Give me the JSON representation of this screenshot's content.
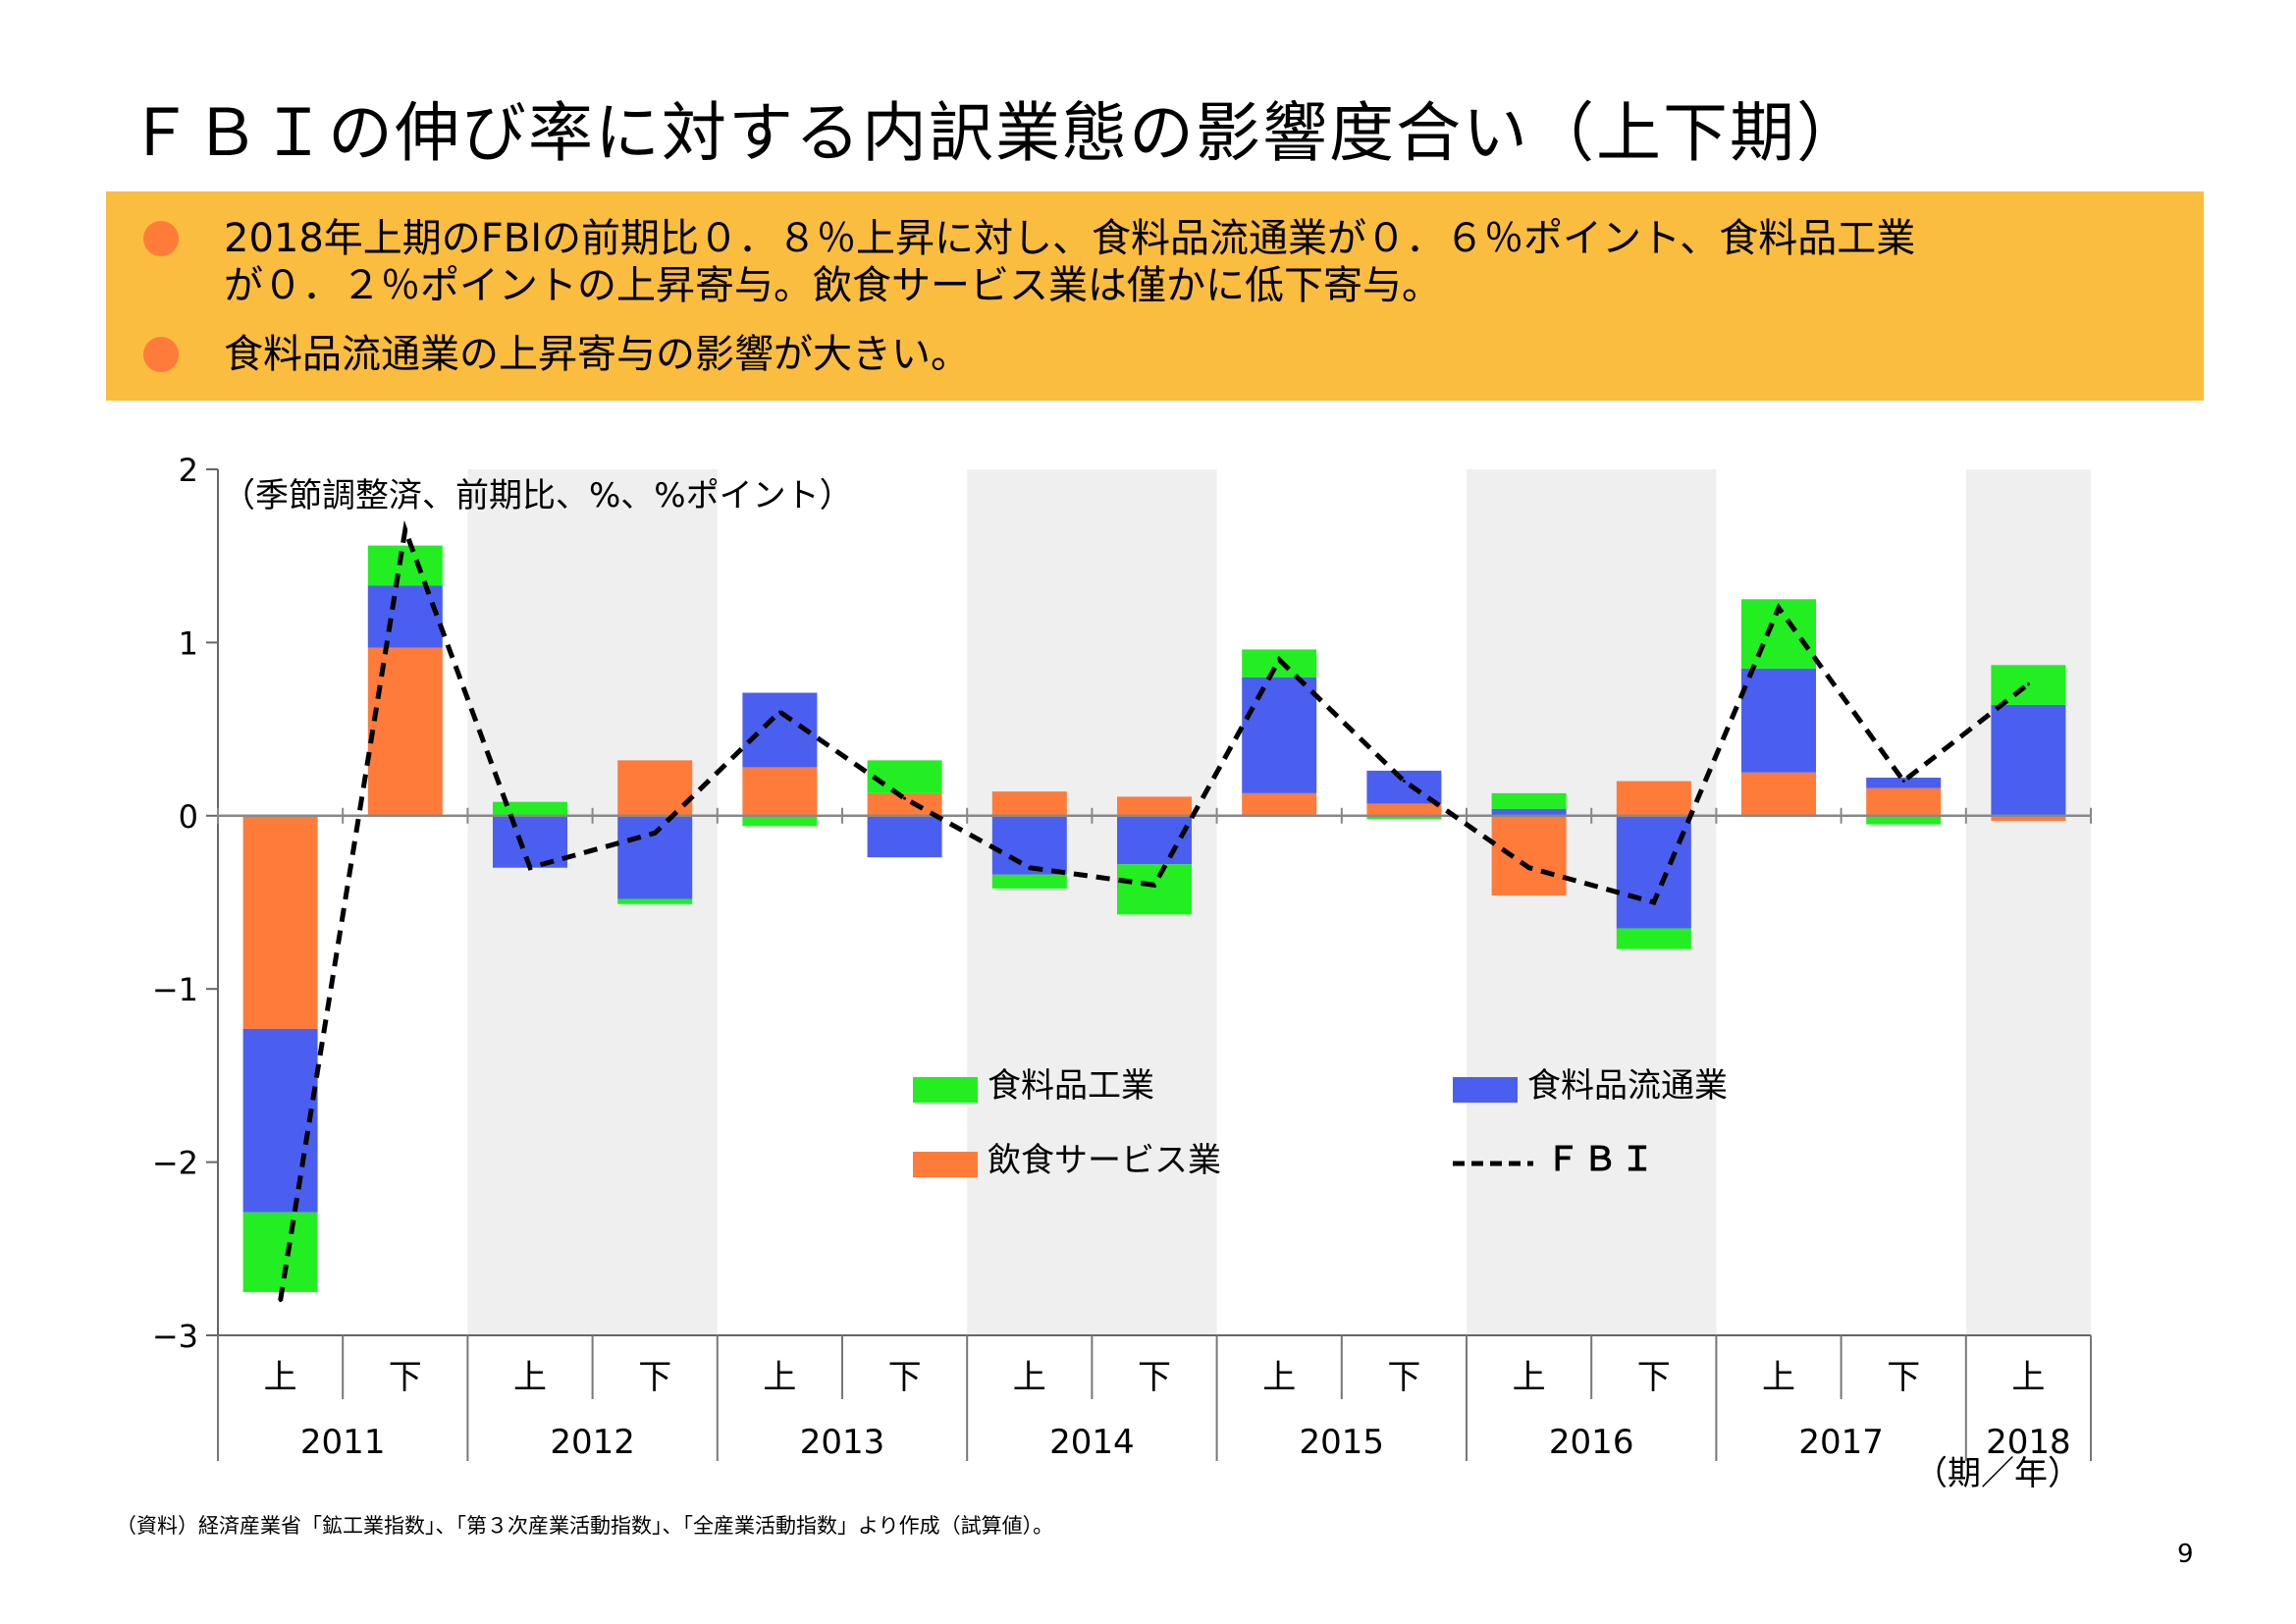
{
  "title": "ＦＢＩの伸び率に対する内訳業態の影響度合い（上下期）",
  "summary": {
    "bullet1_line1": "2018年上期のFBIの前期比０．８％上昇に対し、食料品流通業が０．６％ポイント、食料品工業",
    "bullet1_line2": "が０．２％ポイントの上昇寄与。飲食サービス業は僅かに低下寄与。",
    "bullet2": "食料品流通業の上昇寄与の影響が大きい。"
  },
  "source_note": "（資料）経済産業省「鉱工業指数」、「第３次産業活動指数」、「全産業活動指数」より作成（試算値）。",
  "page_number": "9",
  "colors": {
    "food_industry": "#22ee22",
    "food_distribution": "#4a5ff0",
    "food_service": "#ff7b3a",
    "fbi": "#000000",
    "shade": "#efefef"
  },
  "chart_data": {
    "type": "bar",
    "stacked": true,
    "unit_note": "（季節調整済、前期比、%、%ポイント）",
    "x_unit": "（期／年）",
    "ylim": [
      -3,
      2
    ],
    "yticks": [
      "2",
      "1",
      "0",
      "−1",
      "−2",
      "−3"
    ],
    "categories": [
      "上",
      "下",
      "上",
      "下",
      "上",
      "下",
      "上",
      "下",
      "上",
      "下",
      "上",
      "下",
      "上",
      "下",
      "上"
    ],
    "years": [
      "2011",
      "2012",
      "2013",
      "2014",
      "2015",
      "2016",
      "2017",
      "2018"
    ],
    "shaded_years": [
      "2012",
      "2014",
      "2016",
      "2018"
    ],
    "legend_position": "center",
    "series": [
      {
        "name": "飲食サービス業",
        "values": [
          -1.23,
          0.97,
          0.0,
          0.32,
          0.28,
          0.13,
          0.14,
          0.11,
          0.13,
          0.07,
          -0.46,
          0.2,
          0.25,
          0.16,
          -0.03
        ]
      },
      {
        "name": "食料品流通業",
        "values": [
          -1.06,
          0.36,
          -0.3,
          -0.48,
          0.43,
          -0.24,
          -0.34,
          -0.28,
          0.67,
          0.19,
          0.04,
          -0.65,
          0.6,
          0.06,
          0.64
        ]
      },
      {
        "name": "食料品工業",
        "values": [
          -0.46,
          0.23,
          0.08,
          -0.03,
          -0.06,
          0.19,
          -0.08,
          -0.29,
          0.16,
          -0.02,
          0.09,
          -0.12,
          0.4,
          -0.05,
          0.23
        ]
      },
      {
        "name": "ＦＢＩ",
        "type": "line",
        "values": [
          -2.8,
          1.65,
          -0.3,
          -0.1,
          0.6,
          0.1,
          -0.3,
          -0.4,
          0.9,
          0.2,
          -0.3,
          -0.5,
          1.2,
          0.2,
          0.76
        ]
      }
    ]
  }
}
